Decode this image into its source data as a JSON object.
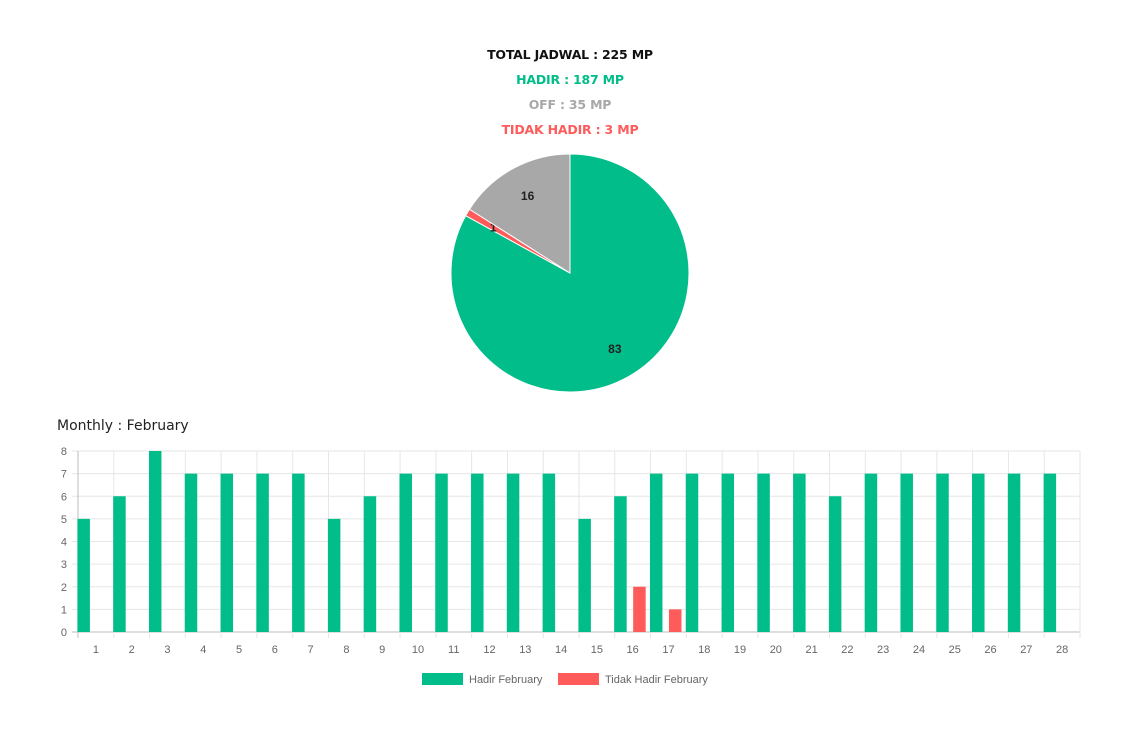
{
  "summary": {
    "total": "TOTAL JADWAL : 225 MP",
    "hadir": "HADIR : 187 MP",
    "off": "OFF : 35 MP",
    "tidak_hadir": "TIDAK HADIR : 3 MP"
  },
  "colors": {
    "hadir": "#00bd8a",
    "off": "#a8a8a8",
    "tidak_hadir": "#ff5b5b",
    "total": "#111111"
  },
  "chart_data": [
    {
      "type": "pie",
      "slices": [
        {
          "label": "Hadir",
          "value": 83,
          "display": "83",
          "color": "#00bd8a"
        },
        {
          "label": "Tidak Hadir",
          "value": 1,
          "display": "1",
          "color": "#ff5b5b"
        },
        {
          "label": "Off",
          "value": 16,
          "display": "16",
          "color": "#a8a8a8"
        }
      ]
    },
    {
      "type": "bar",
      "title": "Monthly : February",
      "categories": [
        "1",
        "2",
        "3",
        "4",
        "5",
        "6",
        "7",
        "8",
        "9",
        "10",
        "11",
        "12",
        "13",
        "14",
        "15",
        "16",
        "17",
        "18",
        "19",
        "20",
        "21",
        "22",
        "23",
        "24",
        "25",
        "26",
        "27",
        "28"
      ],
      "series": [
        {
          "name": "Hadir February",
          "color": "#00bd8a",
          "values": [
            5,
            6,
            8,
            7,
            7,
            7,
            7,
            5,
            6,
            7,
            7,
            7,
            7,
            7,
            5,
            6,
            7,
            7,
            7,
            7,
            7,
            6,
            7,
            7,
            7,
            7,
            7,
            7
          ]
        },
        {
          "name": "Tidak Hadir February",
          "color": "#ff5b5b",
          "values": [
            0,
            0,
            0,
            0,
            0,
            0,
            0,
            0,
            0,
            0,
            0,
            0,
            0,
            0,
            0,
            2,
            1,
            0,
            0,
            0,
            0,
            0,
            0,
            0,
            0,
            0,
            0,
            0
          ]
        }
      ],
      "ylim": [
        0,
        8
      ],
      "yticks": [
        0,
        1,
        2,
        3,
        4,
        5,
        6,
        7,
        8
      ],
      "grid": true,
      "legend": "bottom"
    }
  ]
}
